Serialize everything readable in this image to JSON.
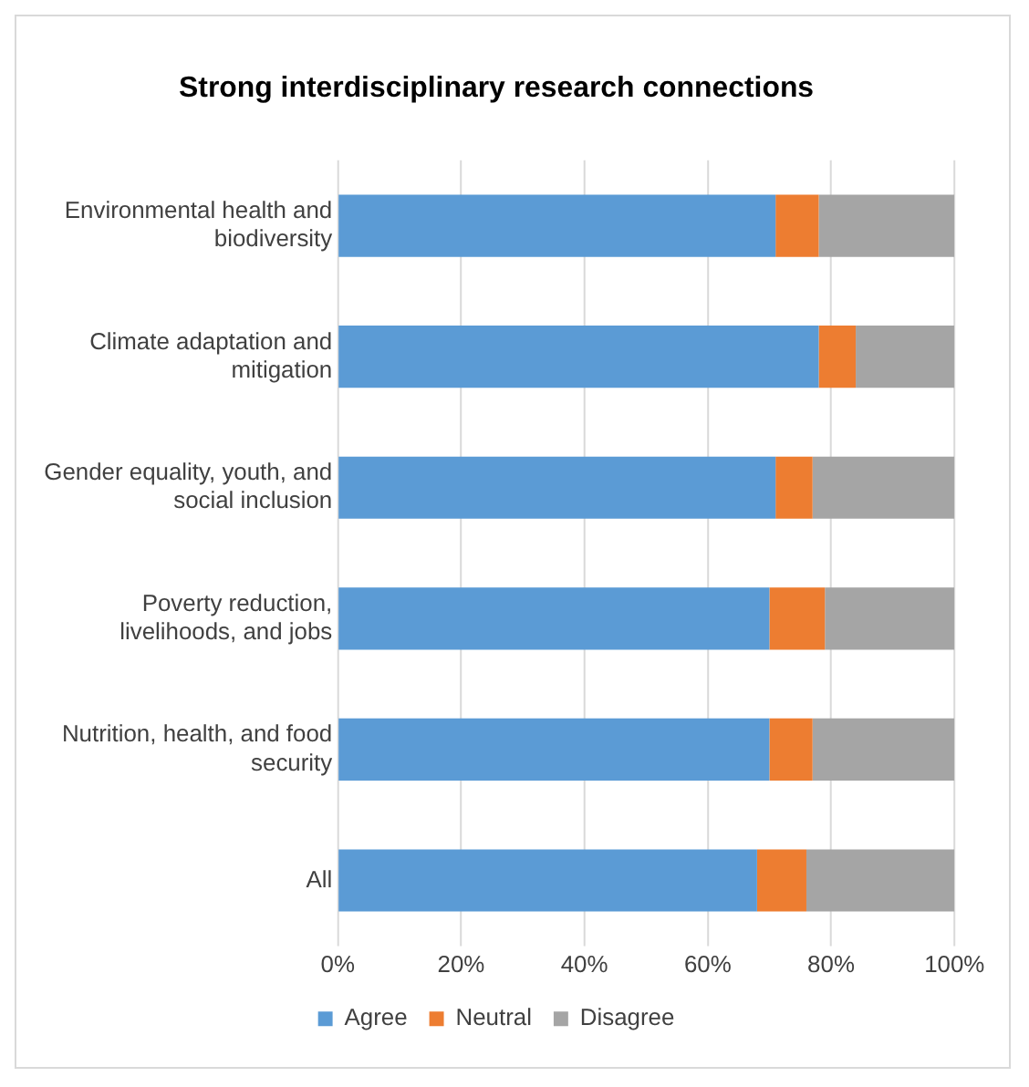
{
  "chart_data": {
    "type": "bar",
    "orientation": "horizontal",
    "stacked": true,
    "title": "Strong interdisciplinary research connections",
    "categories": [
      "Environmental health and biodiversity",
      "Climate adaptation and mitigation",
      "Gender equality, youth, and social inclusion",
      "Poverty reduction, livelihoods, and jobs",
      "Nutrition, health, and food security",
      "All"
    ],
    "series": [
      {
        "name": "Agree",
        "color": "#5b9bd5",
        "values": [
          71,
          78,
          71,
          70,
          70,
          68
        ]
      },
      {
        "name": "Neutral",
        "color": "#ed7d31",
        "values": [
          7,
          6,
          6,
          9,
          7,
          8
        ]
      },
      {
        "name": "Disagree",
        "color": "#a5a5a5",
        "values": [
          22,
          16,
          23,
          21,
          23,
          24
        ]
      }
    ],
    "xlim": [
      0,
      100
    ],
    "xticks": [
      {
        "value": 0,
        "label": "0%"
      },
      {
        "value": 20,
        "label": "20%"
      },
      {
        "value": 40,
        "label": "40%"
      },
      {
        "value": 60,
        "label": "60%"
      },
      {
        "value": 80,
        "label": "80%"
      },
      {
        "value": 100,
        "label": "100%"
      }
    ],
    "grid": "x",
    "legend": "bottom"
  }
}
